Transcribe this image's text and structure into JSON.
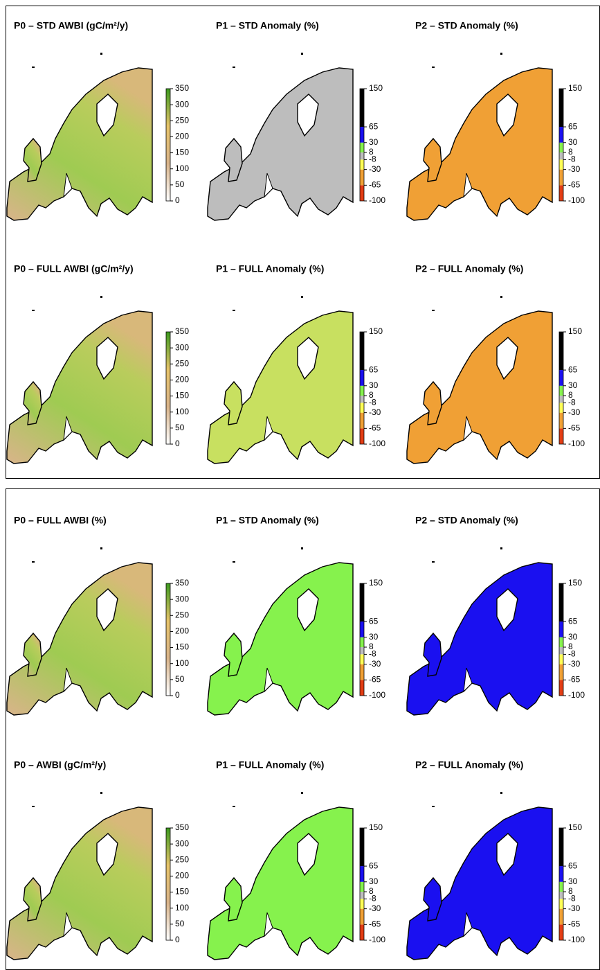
{
  "figures": [
    {
      "panels": [
        {
          "title": "P0 – STD AWBI (gC/m²/y)",
          "kind": "gradient",
          "map_color": "url(#p0grad)",
          "colorbar": {
            "lim": [
              0,
              350
            ],
            "ticks": [
              0,
              50,
              100,
              150,
              200,
              250,
              300,
              350
            ],
            "colors": [
              "#ffffff",
              "#d9b48a",
              "#e7c46a",
              "#3c9a1e"
            ]
          }
        },
        {
          "title": "P1 – STD Anomaly (%)",
          "kind": "bands",
          "map_color": "#bdbdbd",
          "colorbar": {
            "lim": [
              -100,
              150
            ],
            "ticks": [
              -100,
              -65,
              -30,
              -8,
              8,
              30,
              65,
              150
            ],
            "colors": [
              "#e33d14",
              "#f0a035",
              "#ffff55",
              "#bdbdbd",
              "#86f24d",
              "#1a10f0",
              "#000000"
            ]
          }
        },
        {
          "title": "P2 – STD Anomaly (%)",
          "kind": "bands",
          "map_color": "#f0a035",
          "colorbar": {
            "lim": [
              -100,
              150
            ],
            "ticks": [
              -100,
              -65,
              -30,
              -8,
              8,
              30,
              65,
              150
            ],
            "colors": [
              "#e33d14",
              "#f0a035",
              "#ffff55",
              "#bdbdbd",
              "#86f24d",
              "#1a10f0",
              "#000000"
            ]
          }
        },
        {
          "title": "P0 – FULL AWBI (gC/m²/y)",
          "kind": "gradient",
          "map_color": "url(#p0grad)",
          "colorbar": {
            "lim": [
              0,
              350
            ],
            "ticks": [
              0,
              50,
              100,
              150,
              200,
              250,
              300,
              350
            ],
            "colors": [
              "#ffffff",
              "#d9b48a",
              "#e7c46a",
              "#3c9a1e"
            ]
          }
        },
        {
          "title": "P1 – FULL Anomaly (%)",
          "kind": "bands",
          "map_color": "#c8e060",
          "colorbar": {
            "lim": [
              -100,
              150
            ],
            "ticks": [
              -100,
              -65,
              -30,
              -8,
              8,
              30,
              65,
              150
            ],
            "colors": [
              "#e33d14",
              "#f0a035",
              "#ffff55",
              "#bdbdbd",
              "#86f24d",
              "#1a10f0",
              "#000000"
            ]
          }
        },
        {
          "title": "P2 – FULL Anomaly (%)",
          "kind": "bands",
          "map_color": "#f0a035",
          "colorbar": {
            "lim": [
              -100,
              150
            ],
            "ticks": [
              -100,
              -65,
              -30,
              -8,
              8,
              30,
              65,
              150
            ],
            "colors": [
              "#e33d14",
              "#f0a035",
              "#ffff55",
              "#bdbdbd",
              "#86f24d",
              "#1a10f0",
              "#000000"
            ]
          }
        }
      ]
    },
    {
      "panels": [
        {
          "title": "P0 – FULL AWBI (%)",
          "kind": "gradient",
          "map_color": "url(#p0grad)",
          "colorbar": {
            "lim": [
              0,
              350
            ],
            "ticks": [
              0,
              50,
              100,
              150,
              200,
              250,
              300,
              350
            ],
            "colors": [
              "#ffffff",
              "#d9b48a",
              "#e7c46a",
              "#3c9a1e"
            ]
          }
        },
        {
          "title": "P1 – STD Anomaly (%)",
          "kind": "bands",
          "map_color": "#86f24d",
          "colorbar": {
            "lim": [
              -100,
              150
            ],
            "ticks": [
              -100,
              -65,
              -30,
              -8,
              8,
              30,
              65,
              150
            ],
            "colors": [
              "#e33d14",
              "#f0a035",
              "#ffff55",
              "#bdbdbd",
              "#86f24d",
              "#1a10f0",
              "#000000"
            ]
          }
        },
        {
          "title": "P2 – STD Anomaly (%)",
          "kind": "bands",
          "map_color": "#1a10f0",
          "colorbar": {
            "lim": [
              -100,
              150
            ],
            "ticks": [
              -100,
              -65,
              -30,
              -8,
              8,
              30,
              65,
              150
            ],
            "colors": [
              "#e33d14",
              "#f0a035",
              "#ffff55",
              "#bdbdbd",
              "#86f24d",
              "#1a10f0",
              "#000000"
            ]
          }
        },
        {
          "title": "P0 – AWBI (gC/m²/y)",
          "kind": "gradient",
          "map_color": "url(#p0grad)",
          "colorbar": {
            "lim": [
              0,
              350
            ],
            "ticks": [
              0,
              50,
              100,
              150,
              200,
              250,
              300,
              350
            ],
            "colors": [
              "#ffffff",
              "#d9b48a",
              "#e7c46a",
              "#3c9a1e"
            ]
          }
        },
        {
          "title": "P1 – FULL Anomaly (%)",
          "kind": "bands",
          "map_color": "#86f24d",
          "colorbar": {
            "lim": [
              -100,
              150
            ],
            "ticks": [
              -100,
              -65,
              -30,
              -8,
              8,
              30,
              65,
              150
            ],
            "colors": [
              "#e33d14",
              "#f0a035",
              "#ffff55",
              "#bdbdbd",
              "#86f24d",
              "#1a10f0",
              "#000000"
            ]
          }
        },
        {
          "title": "P2 – FULL Anomaly (%)",
          "kind": "bands",
          "map_color": "#1a10f0",
          "colorbar": {
            "lim": [
              -100,
              150
            ],
            "ticks": [
              -100,
              -65,
              -30,
              -8,
              8,
              30,
              65,
              150
            ],
            "colors": [
              "#e33d14",
              "#f0a035",
              "#ffff55",
              "#bdbdbd",
              "#86f24d",
              "#1a10f0",
              "#000000"
            ]
          }
        }
      ]
    }
  ]
}
